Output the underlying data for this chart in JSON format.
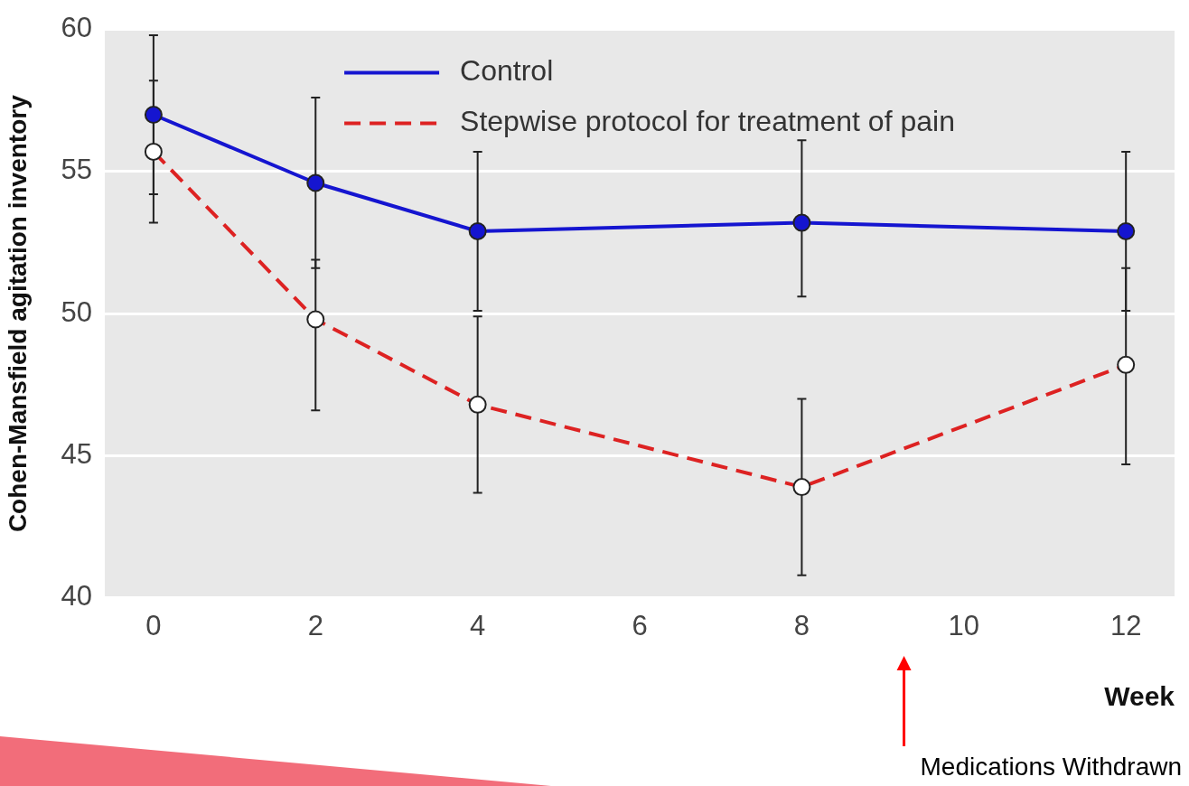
{
  "chart_data": {
    "type": "line",
    "ylabel": "Cohen-Mansfield agitation inventory",
    "xlabel": "Week",
    "x": [
      0,
      2,
      4,
      8,
      12
    ],
    "xlim": [
      -0.6,
      12.6
    ],
    "xticks": [
      0,
      2,
      4,
      6,
      8,
      10,
      12
    ],
    "ylim": [
      40,
      60
    ],
    "yticks": [
      40,
      45,
      50,
      55,
      60
    ],
    "grid": "y",
    "legend": "top",
    "marker": "circle",
    "series": [
      {
        "name": "Control",
        "color": "#1515d0",
        "line_style": "solid",
        "values": [
          57.0,
          54.6,
          52.9,
          53.2,
          52.9
        ],
        "errors": [
          [
            54.2,
            59.8
          ],
          [
            51.6,
            57.6
          ],
          [
            50.1,
            55.7
          ],
          [
            50.6,
            56.1
          ],
          [
            50.1,
            55.7
          ]
        ]
      },
      {
        "name": "Stepwise protocol for treatment of pain",
        "color": "#dd2222",
        "line_style": "dashed",
        "values": [
          55.7,
          49.8,
          46.8,
          43.9,
          48.2
        ],
        "errors": [
          [
            53.2,
            58.2
          ],
          [
            46.6,
            51.9
          ],
          [
            43.7,
            49.9
          ],
          [
            40.8,
            47.0
          ],
          [
            44.7,
            51.6
          ]
        ]
      }
    ],
    "annotations": [
      "Medications Withdrawn"
    ]
  }
}
